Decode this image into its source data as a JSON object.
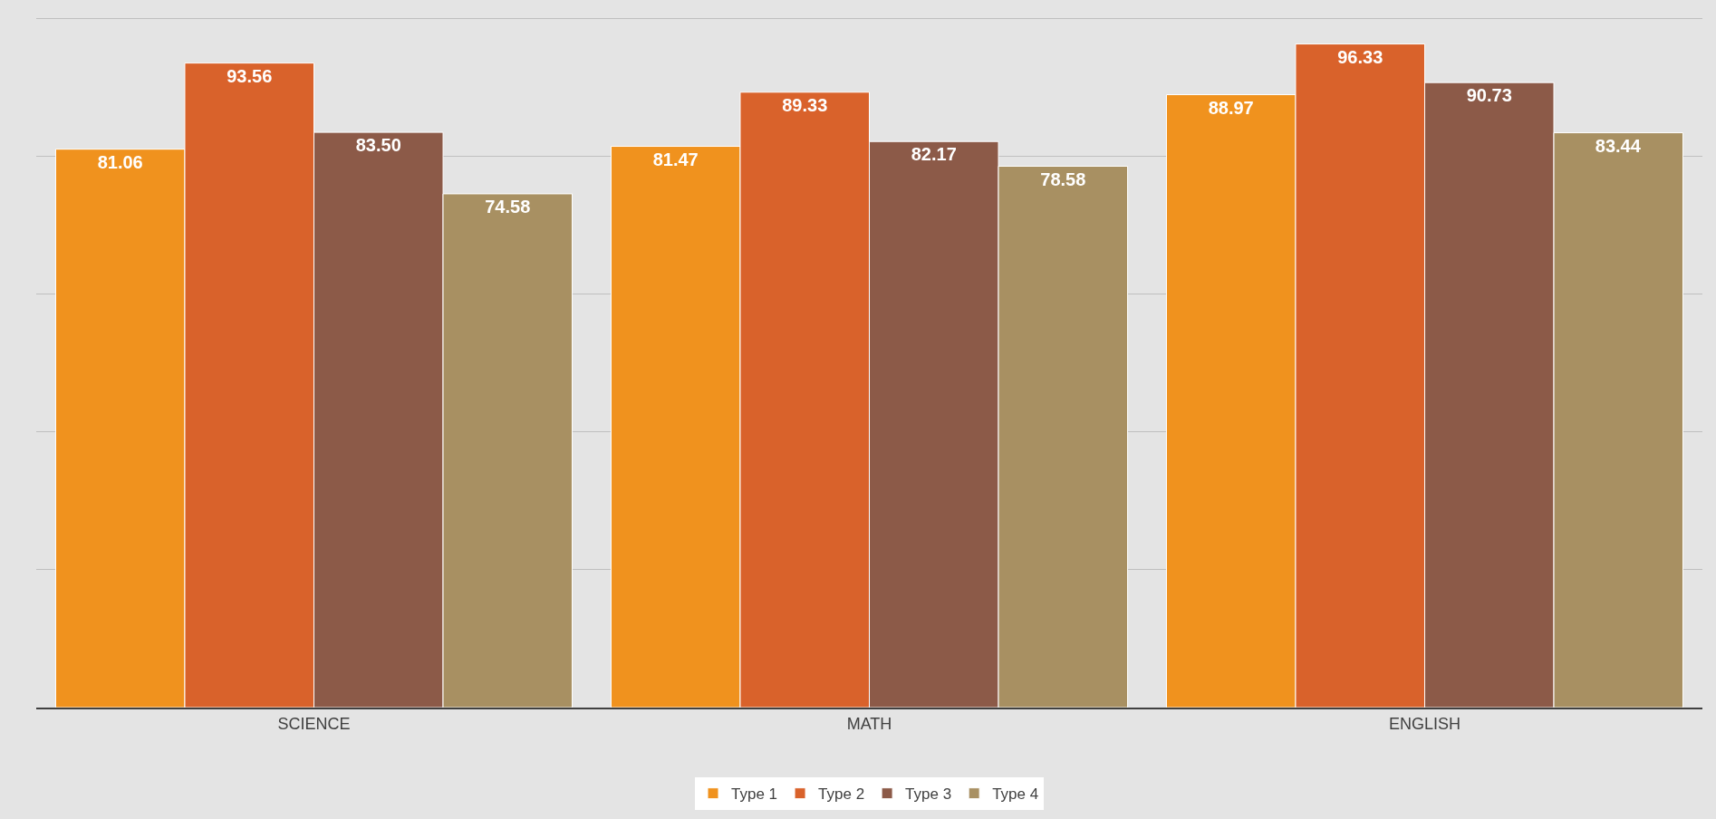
{
  "chart_data": {
    "type": "bar",
    "categories": [
      "SCIENCE",
      "MATH",
      "ENGLISH"
    ],
    "series": [
      {
        "name": "Type 1",
        "color": "#f0921e",
        "values": [
          81.06,
          81.47,
          88.97
        ],
        "value_labels": [
          "81.06",
          "81.47",
          "88.97"
        ]
      },
      {
        "name": "Type 2",
        "color": "#d9622b",
        "values": [
          93.56,
          89.33,
          96.33
        ],
        "value_labels": [
          "93.56",
          "89.33",
          "96.33"
        ]
      },
      {
        "name": "Type 3",
        "color": "#8c5a48",
        "values": [
          83.5,
          82.17,
          90.73
        ],
        "value_labels": [
          "83.50",
          "82.17",
          "90.73"
        ]
      },
      {
        "name": "Type 4",
        "color": "#a89062",
        "values": [
          74.58,
          78.58,
          83.44
        ],
        "value_labels": [
          "74.58",
          "78.58",
          "83.44"
        ]
      }
    ],
    "tick_labels": "x",
    "grid": "y",
    "legend": "bottom"
  }
}
